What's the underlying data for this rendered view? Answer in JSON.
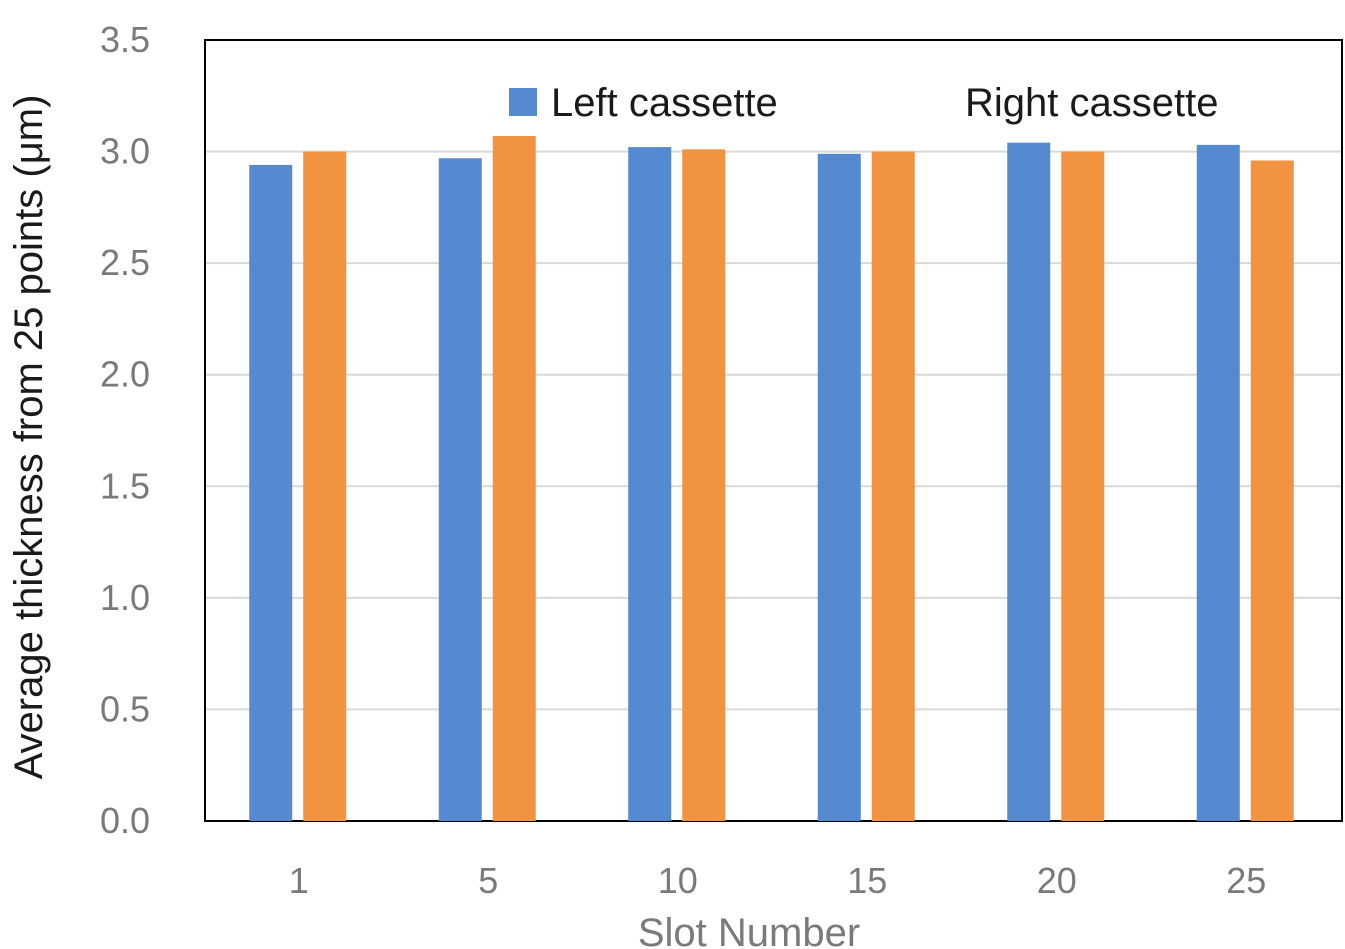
{
  "chart_data": {
    "type": "bar",
    "title": "",
    "xlabel": "Slot Number",
    "ylabel": "Average thickness from 25 points (μm)",
    "categories": [
      "1",
      "5",
      "10",
      "15",
      "20",
      "25"
    ],
    "series": [
      {
        "name": "Left cassette",
        "color": "#5589d0",
        "values": [
          2.94,
          2.97,
          3.02,
          2.99,
          3.04,
          3.03
        ]
      },
      {
        "name": "Right cassette",
        "color": "#f29340",
        "values": [
          3.0,
          3.07,
          3.01,
          3.0,
          3.0,
          2.96
        ]
      }
    ],
    "ylim": [
      0,
      3.5
    ],
    "yticks": [
      "0.0",
      "0.5",
      "1.0",
      "1.5",
      "2.0",
      "2.5",
      "3.0",
      "3.5"
    ],
    "grid": true,
    "legend_position": "top",
    "legend_marker_shown": [
      true,
      false
    ]
  }
}
